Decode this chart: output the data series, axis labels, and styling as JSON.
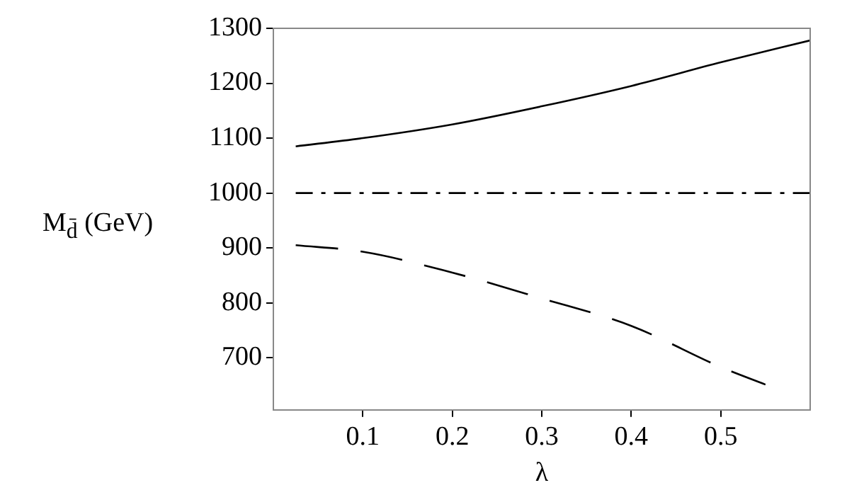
{
  "chart_data": {
    "type": "line",
    "xlabel": "λ",
    "ylabel": "M$_{d̄}$ (GeV)",
    "xlim": [
      0,
      0.6
    ],
    "xticks": [
      0.1,
      0.2,
      0.3,
      0.4,
      0.5
    ],
    "ylim": [
      605,
      1300
    ],
    "yticks": [
      700,
      800,
      900,
      1000,
      1100,
      1200,
      1300
    ],
    "grid": false,
    "legend": false,
    "marker": "none",
    "series": [
      {
        "color": "#000000",
        "line_style": "solid",
        "x": [
          0.025,
          0.1,
          0.2,
          0.3,
          0.4,
          0.5,
          0.6
        ],
        "values": [
          1085,
          1100,
          1125,
          1158,
          1195,
          1238,
          1278
        ]
      },
      {
        "color": "#000000",
        "line_style": "dashdot",
        "x": [
          0.025,
          0.6
        ],
        "values": [
          1000,
          1000
        ]
      },
      {
        "color": "#000000",
        "line_style": "dashed",
        "x": [
          0.025,
          0.1,
          0.2,
          0.3,
          0.4,
          0.5,
          0.55
        ],
        "values": [
          905,
          893,
          855,
          808,
          758,
          683,
          651
        ]
      }
    ]
  }
}
